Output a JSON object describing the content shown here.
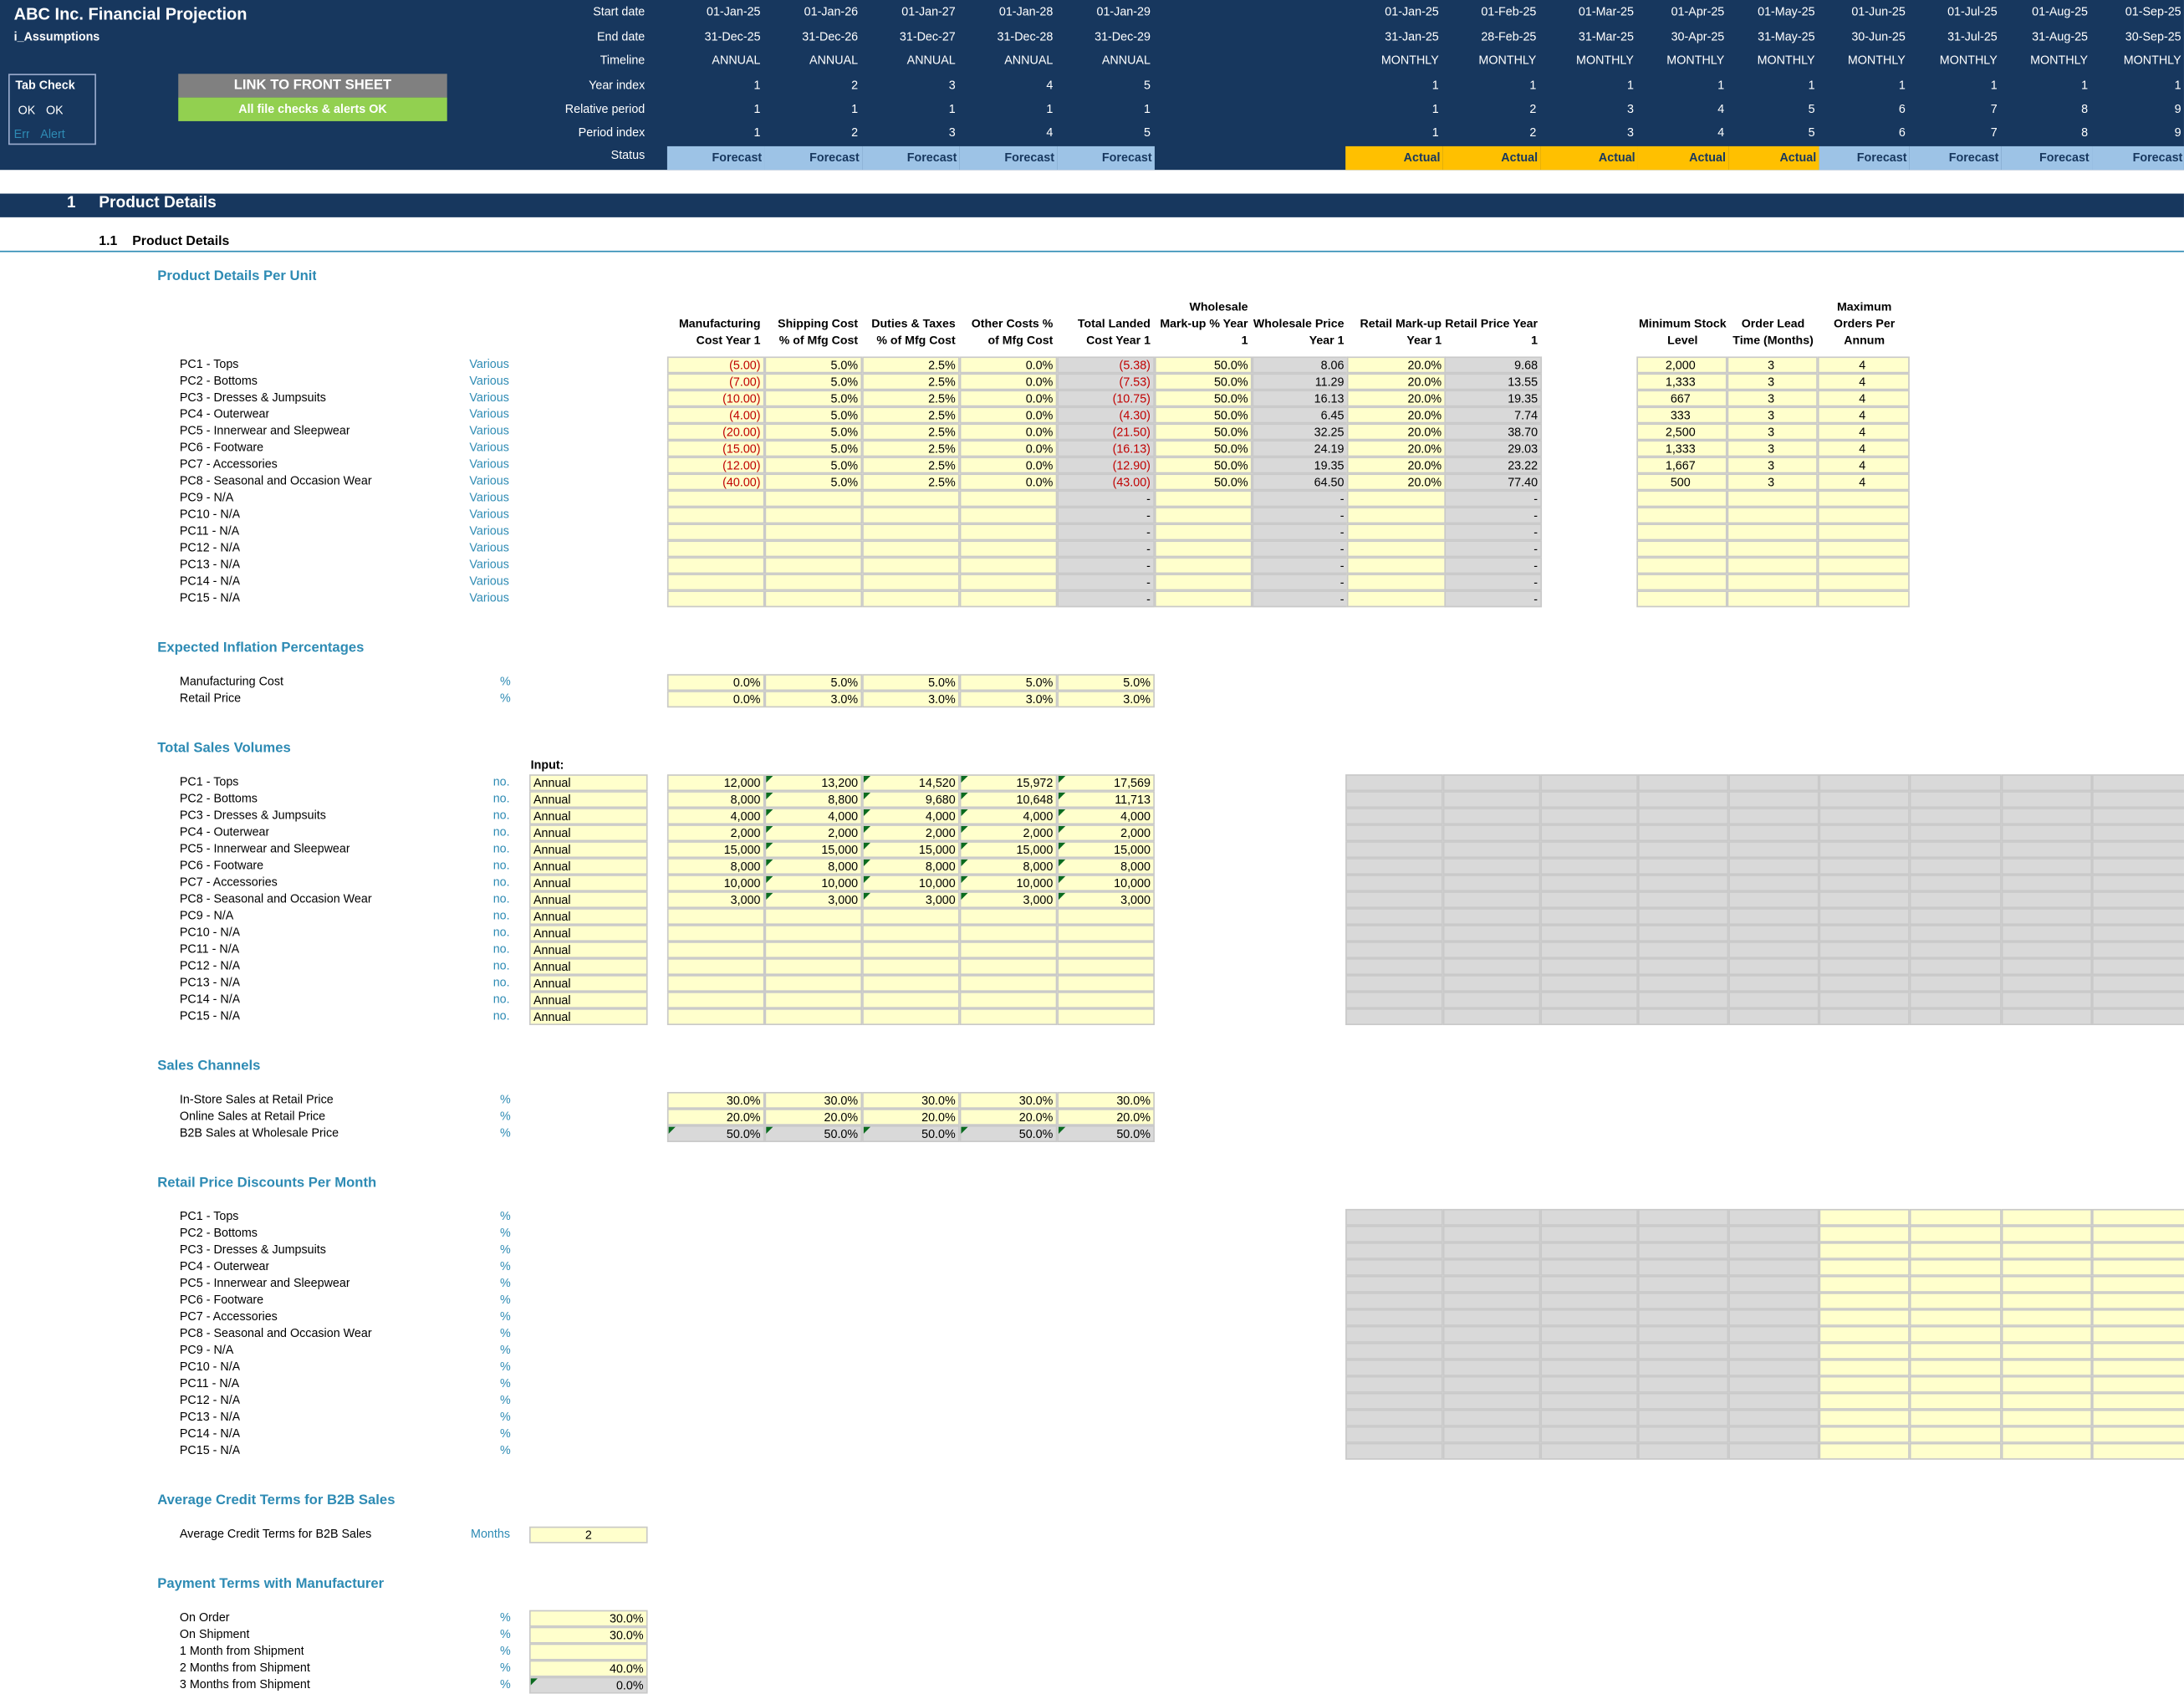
{
  "app": {
    "title": "ABC Inc. Financial Projection",
    "sheet": "i_Assumptions"
  },
  "tabcheck": {
    "title": "Tab Check",
    "ok1": "OK",
    "ok2": "OK",
    "err": "Err",
    "alert": "Alert"
  },
  "buttons": {
    "front": "LINK TO FRONT SHEET",
    "checks": "All file checks & alerts OK"
  },
  "timeline": {
    "labels": [
      "Start date",
      "End date",
      "Timeline",
      "Year index",
      "Relative period",
      "Period index",
      "Status"
    ],
    "annual": [
      [
        "01-Jan-25",
        "31-Dec-25",
        "ANNUAL",
        "1",
        "1",
        "1",
        "Forecast"
      ],
      [
        "01-Jan-26",
        "31-Dec-26",
        "ANNUAL",
        "2",
        "1",
        "2",
        "Forecast"
      ],
      [
        "01-Jan-27",
        "31-Dec-27",
        "ANNUAL",
        "3",
        "1",
        "3",
        "Forecast"
      ],
      [
        "01-Jan-28",
        "31-Dec-28",
        "ANNUAL",
        "4",
        "1",
        "4",
        "Forecast"
      ],
      [
        "01-Jan-29",
        "31-Dec-29",
        "ANNUAL",
        "5",
        "1",
        "5",
        "Forecast"
      ]
    ],
    "monthly": [
      [
        "01-Jan-25",
        "31-Jan-25",
        "MONTHLY",
        "1",
        "1",
        "1",
        "Actual"
      ],
      [
        "01-Feb-25",
        "28-Feb-25",
        "MONTHLY",
        "1",
        "2",
        "2",
        "Actual"
      ],
      [
        "01-Mar-25",
        "31-Mar-25",
        "MONTHLY",
        "1",
        "3",
        "3",
        "Actual"
      ],
      [
        "01-Apr-25",
        "30-Apr-25",
        "MONTHLY",
        "1",
        "4",
        "4",
        "Actual"
      ],
      [
        "01-May-25",
        "31-May-25",
        "MONTHLY",
        "1",
        "5",
        "5",
        "Actual"
      ],
      [
        "01-Jun-25",
        "30-Jun-25",
        "MONTHLY",
        "1",
        "6",
        "6",
        "Forecast"
      ],
      [
        "01-Jul-25",
        "31-Jul-25",
        "MONTHLY",
        "1",
        "7",
        "7",
        "Forecast"
      ],
      [
        "01-Aug-25",
        "31-Aug-25",
        "MONTHLY",
        "1",
        "8",
        "8",
        "Forecast"
      ],
      [
        "01-Sep-25",
        "30-Sep-25",
        "MONTHLY",
        "1",
        "9",
        "9",
        "Forecast"
      ]
    ]
  },
  "section": {
    "num": "1",
    "title": "Product Details",
    "subnum": "1.1",
    "subtitle": "Product Details"
  },
  "products": [
    "PC1 - Tops",
    "PC2 - Bottoms",
    "PC3 - Dresses & Jumpsuits",
    "PC4 - Outerwear",
    "PC5 - Innerwear and Sleepwear",
    "PC6 - Footware",
    "PC7 - Accessories",
    "PC8 - Seasonal and Occasion Wear",
    "PC9 - N/A",
    "PC10 - N/A",
    "PC11 - N/A",
    "PC12 - N/A",
    "PC13 - N/A",
    "PC14 - N/A",
    "PC15 - N/A"
  ],
  "perUnit": {
    "title": "Product Details Per Unit",
    "unit": "Various",
    "headers": [
      "Manufacturing Cost Year 1",
      "Shipping Cost % of Mfg Cost",
      "Duties & Taxes % of Mfg Cost",
      "Other Costs % of Mfg Cost",
      "Total Landed Cost Year 1",
      "Wholesale Mark-up % Year 1",
      "Wholesale Price Year 1",
      "Retail Mark-up Year 1",
      "Retail Price Year 1"
    ],
    "stockHeaders": [
      "Minimum Stock Level",
      "Order Lead Time (Months)",
      "Maximum Orders Per Annum"
    ],
    "rows": [
      [
        "(5.00)",
        "5.0%",
        "2.5%",
        "0.0%",
        "(5.38)",
        "50.0%",
        "8.06",
        "20.0%",
        "9.68",
        "2,000",
        "3",
        "4"
      ],
      [
        "(7.00)",
        "5.0%",
        "2.5%",
        "0.0%",
        "(7.53)",
        "50.0%",
        "11.29",
        "20.0%",
        "13.55",
        "1,333",
        "3",
        "4"
      ],
      [
        "(10.00)",
        "5.0%",
        "2.5%",
        "0.0%",
        "(10.75)",
        "50.0%",
        "16.13",
        "20.0%",
        "19.35",
        "667",
        "3",
        "4"
      ],
      [
        "(4.00)",
        "5.0%",
        "2.5%",
        "0.0%",
        "(4.30)",
        "50.0%",
        "6.45",
        "20.0%",
        "7.74",
        "333",
        "3",
        "4"
      ],
      [
        "(20.00)",
        "5.0%",
        "2.5%",
        "0.0%",
        "(21.50)",
        "50.0%",
        "32.25",
        "20.0%",
        "38.70",
        "2,500",
        "3",
        "4"
      ],
      [
        "(15.00)",
        "5.0%",
        "2.5%",
        "0.0%",
        "(16.13)",
        "50.0%",
        "24.19",
        "20.0%",
        "29.03",
        "1,333",
        "3",
        "4"
      ],
      [
        "(12.00)",
        "5.0%",
        "2.5%",
        "0.0%",
        "(12.90)",
        "50.0%",
        "19.35",
        "20.0%",
        "23.22",
        "1,667",
        "3",
        "4"
      ],
      [
        "(40.00)",
        "5.0%",
        "2.5%",
        "0.0%",
        "(43.00)",
        "50.0%",
        "64.50",
        "20.0%",
        "77.40",
        "500",
        "3",
        "4"
      ],
      [
        "",
        "",
        "",
        "",
        "-",
        "",
        "-",
        "",
        "-",
        "",
        "",
        ""
      ],
      [
        "",
        "",
        "",
        "",
        "-",
        "",
        "-",
        "",
        "-",
        "",
        "",
        ""
      ],
      [
        "",
        "",
        "",
        "",
        "-",
        "",
        "-",
        "",
        "-",
        "",
        "",
        ""
      ],
      [
        "",
        "",
        "",
        "",
        "-",
        "",
        "-",
        "",
        "-",
        "",
        "",
        ""
      ],
      [
        "",
        "",
        "",
        "",
        "-",
        "",
        "-",
        "",
        "-",
        "",
        "",
        ""
      ],
      [
        "",
        "",
        "",
        "",
        "-",
        "",
        "-",
        "",
        "-",
        "",
        "",
        ""
      ],
      [
        "",
        "",
        "",
        "",
        "-",
        "",
        "-",
        "",
        "-",
        "",
        "",
        ""
      ]
    ]
  },
  "inflation": {
    "title": "Expected Inflation Percentages",
    "rows": [
      {
        "label": "Manufacturing Cost",
        "unit": "%",
        "values": [
          "0.0%",
          "5.0%",
          "5.0%",
          "5.0%",
          "5.0%"
        ]
      },
      {
        "label": "Retail Price",
        "unit": "%",
        "values": [
          "0.0%",
          "3.0%",
          "3.0%",
          "3.0%",
          "3.0%"
        ]
      }
    ]
  },
  "volumes": {
    "title": "Total Sales Volumes",
    "inputLabel": "Input:",
    "unit": "no.",
    "mode": "Annual",
    "rows": [
      [
        "12,000",
        "13,200",
        "14,520",
        "15,972",
        "17,569"
      ],
      [
        "8,000",
        "8,800",
        "9,680",
        "10,648",
        "11,713"
      ],
      [
        "4,000",
        "4,000",
        "4,000",
        "4,000",
        "4,000"
      ],
      [
        "2,000",
        "2,000",
        "2,000",
        "2,000",
        "2,000"
      ],
      [
        "15,000",
        "15,000",
        "15,000",
        "15,000",
        "15,000"
      ],
      [
        "8,000",
        "8,000",
        "8,000",
        "8,000",
        "8,000"
      ],
      [
        "10,000",
        "10,000",
        "10,000",
        "10,000",
        "10,000"
      ],
      [
        "3,000",
        "3,000",
        "3,000",
        "3,000",
        "3,000"
      ],
      [
        "",
        "",
        "",
        "",
        ""
      ],
      [
        "",
        "",
        "",
        "",
        ""
      ],
      [
        "",
        "",
        "",
        "",
        ""
      ],
      [
        "",
        "",
        "",
        "",
        ""
      ],
      [
        "",
        "",
        "",
        "",
        ""
      ],
      [
        "",
        "",
        "",
        "",
        ""
      ],
      [
        "",
        "",
        "",
        "",
        ""
      ]
    ]
  },
  "channels": {
    "title": "Sales Channels",
    "rows": [
      {
        "label": "In-Store Sales at Retail Price",
        "unit": "%",
        "values": [
          "30.0%",
          "30.0%",
          "30.0%",
          "30.0%",
          "30.0%"
        ]
      },
      {
        "label": "Online Sales at Retail Price",
        "unit": "%",
        "values": [
          "20.0%",
          "20.0%",
          "20.0%",
          "20.0%",
          "20.0%"
        ]
      },
      {
        "label": "B2B Sales at Wholesale Price",
        "unit": "%",
        "values": [
          "50.0%",
          "50.0%",
          "50.0%",
          "50.0%",
          "50.0%"
        ]
      }
    ]
  },
  "discounts": {
    "title": "Retail Price Discounts Per Month",
    "unit": "%"
  },
  "credit": {
    "title": "Average Credit Terms for B2B Sales",
    "label": "Average Credit Terms for B2B Sales",
    "unit": "Months",
    "value": "2"
  },
  "payment": {
    "title": "Payment Terms with Manufacturer",
    "rows": [
      {
        "label": "On Order",
        "unit": "%",
        "value": "30.0%"
      },
      {
        "label": "On Shipment",
        "unit": "%",
        "value": "30.0%"
      },
      {
        "label": "1 Month from Shipment",
        "unit": "%",
        "value": ""
      },
      {
        "label": "2 Months from Shipment",
        "unit": "%",
        "value": "40.0%"
      },
      {
        "label": "3 Months from Shipment",
        "unit": "%",
        "value": "0.0%"
      }
    ]
  },
  "colors": {
    "header": "#17375e",
    "forecast": "#9dc3e6",
    "actual": "#ffc000",
    "input": "#ffffcc",
    "calc": "#d9d9d9",
    "accent": "#2e8bb4",
    "button": "#808080",
    "ok": "#92d050"
  }
}
